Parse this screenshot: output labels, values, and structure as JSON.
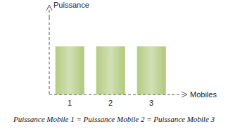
{
  "chart_data": {
    "type": "bar",
    "x_label": "Mobiles",
    "y_label": "Puissance",
    "categories": [
      "1",
      "2",
      "3"
    ],
    "values": [
      1,
      1,
      1
    ],
    "color": "#9bbb59",
    "ylim": [
      0,
      1.6
    ],
    "tick_labels": "x",
    "grid": false,
    "annotations": [
      "Puissance Mobile 1 = Puissance Mobile 2 = Puissance Mobile 3"
    ]
  }
}
